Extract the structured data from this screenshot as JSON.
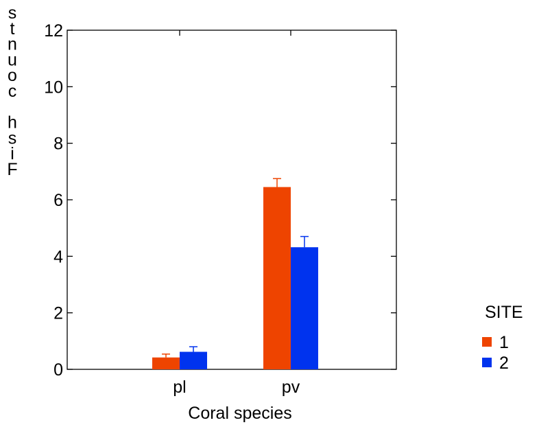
{
  "chart_data": {
    "type": "bar",
    "title": "",
    "xlabel": "Coral species",
    "ylabel": "Fish counts",
    "categories": [
      "pl",
      "pv"
    ],
    "ylim": [
      0,
      12
    ],
    "yticks": [
      0,
      2,
      4,
      6,
      8,
      10,
      12
    ],
    "grid": false,
    "legend": {
      "title": "SITE",
      "position": "right"
    },
    "series": [
      {
        "name": "1",
        "values": [
          0.42,
          6.45
        ],
        "errors": [
          0.12,
          0.3
        ],
        "color": "#ee4400"
      },
      {
        "name": "2",
        "values": [
          0.62,
          4.32
        ],
        "errors": [
          0.18,
          0.38
        ],
        "color": "#0033ee"
      }
    ]
  }
}
